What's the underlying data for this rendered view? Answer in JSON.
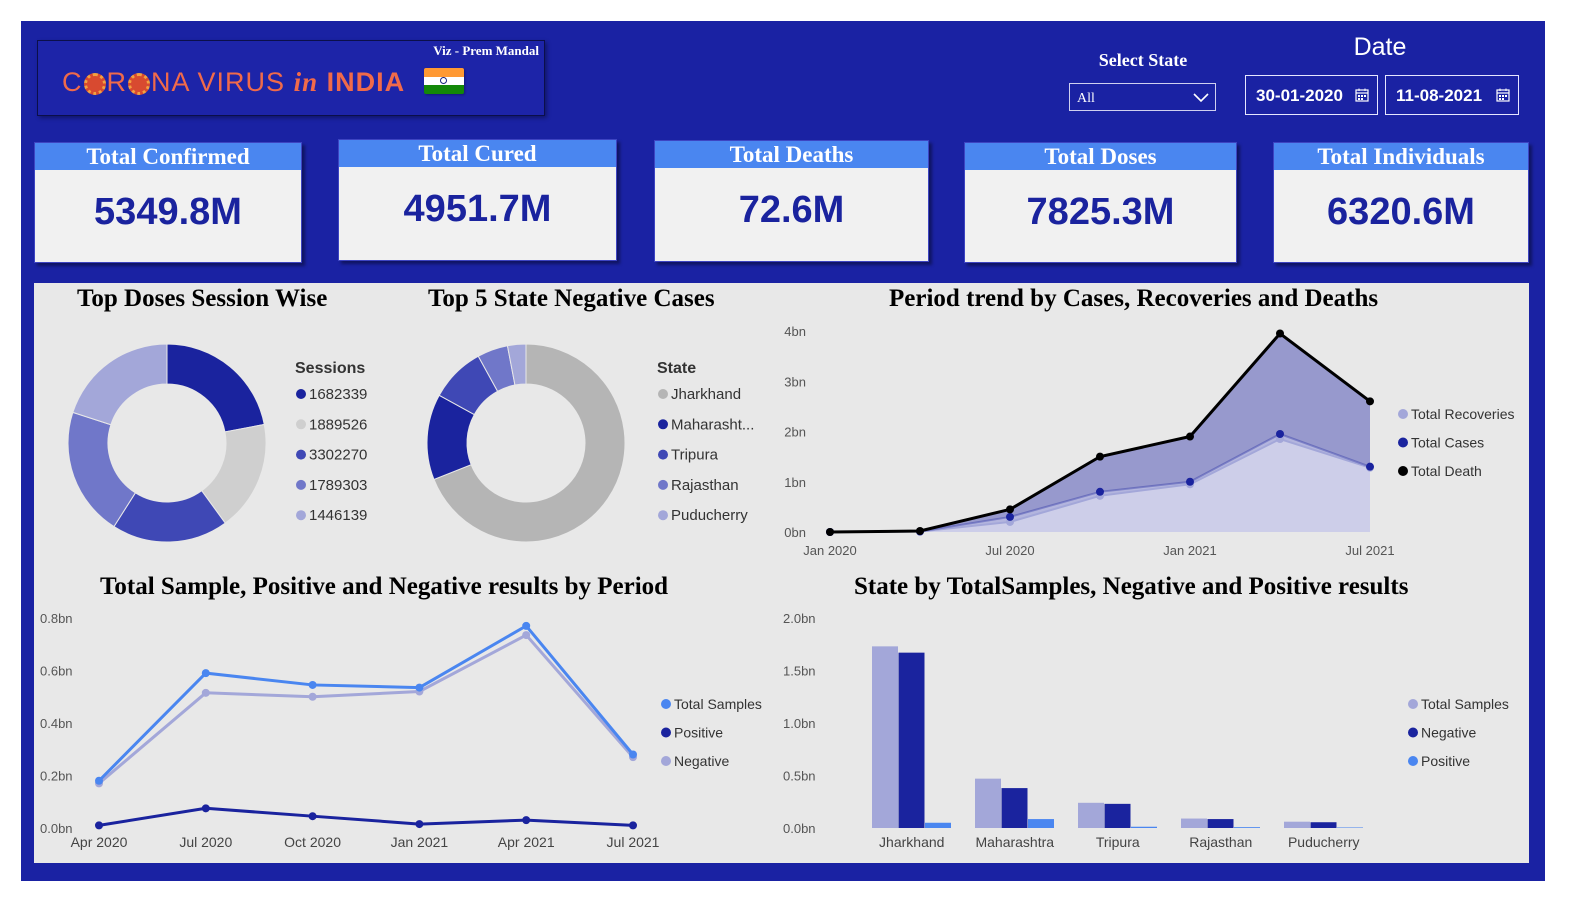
{
  "header": {
    "viz_credit": "Viz - Prem Mandal",
    "title_part1": "C",
    "title_part2": "R",
    "title_part3": "NA VIRUS",
    "title_in": "in",
    "title_india": "INDIA",
    "select_state_label": "Select State",
    "select_state_value": "All",
    "date_label": "Date",
    "date_from": "30-01-2020",
    "date_to": "11-08-2021"
  },
  "kpis": [
    {
      "label": "Total Confirmed",
      "value": "5349.8M"
    },
    {
      "label": "Total Cured",
      "value": "4951.7M"
    },
    {
      "label": "Total Deaths",
      "value": "72.6M"
    },
    {
      "label": "Total Doses",
      "value": "7825.3M"
    },
    {
      "label": "Total Individuals",
      "value": "6320.6M"
    }
  ],
  "colors": {
    "frame": "#1a22a3",
    "kpi_header": "#4a86f0",
    "kpi_value": "#1a239e",
    "panel": "#e8e8e8"
  },
  "charts": {
    "doses": {
      "title": "Top Doses Session Wise",
      "legend_title": "Sessions"
    },
    "negative": {
      "title": "Top 5 State Negative Cases",
      "legend_title": "State"
    },
    "trend": {
      "title": "Period trend by Cases, Recoveries and Deaths"
    },
    "samples": {
      "title": "Total Sample, Positive and Negative results by Period"
    },
    "state_bars": {
      "title": "State by TotalSamples, Negative and Positive results"
    }
  },
  "chart_data": [
    {
      "type": "pie",
      "title": "Top Doses Session Wise",
      "legend_title": "Sessions",
      "categories": [
        "1682339",
        "1889526",
        "3302270",
        "1789303",
        "1446139"
      ],
      "values": [
        0.22,
        0.18,
        0.19,
        0.21,
        0.2
      ],
      "colors": [
        "#1a239e",
        "#cfcfcf",
        "#3f48b5",
        "#7077c9",
        "#a3a7d9"
      ]
    },
    {
      "type": "pie",
      "title": "Top 5 State Negative Cases",
      "legend_title": "State",
      "categories": [
        "Jharkhand",
        "Maharasht...",
        "Tripura",
        "Rajasthan",
        "Puducherry"
      ],
      "values": [
        0.69,
        0.14,
        0.09,
        0.05,
        0.03
      ],
      "colors": [
        "#b5b5b5",
        "#1a239e",
        "#3f48b5",
        "#7077c9",
        "#a3a7d9"
      ]
    },
    {
      "type": "area",
      "title": "Period trend by Cases, Recoveries and Deaths",
      "x": [
        "2020-01",
        "2020-04",
        "2020-07",
        "2020-10",
        "2021-01",
        "2021-04",
        "2021-07"
      ],
      "x_ticks": [
        "Jan 2020",
        "Jul 2020",
        "Jan 2021",
        "Jul 2021"
      ],
      "y_ticks": [
        "0bn",
        "1bn",
        "2bn",
        "3bn",
        "4bn"
      ],
      "ylim": [
        0,
        4
      ],
      "series": [
        {
          "name": "Total Recoveries",
          "color": "#a3a7d9",
          "values": [
            0.0,
            0.01,
            0.2,
            0.72,
            0.95,
            1.85,
            1.28
          ]
        },
        {
          "name": "Total Cases",
          "color": "#1a239e",
          "values": [
            0.0,
            0.01,
            0.3,
            0.8,
            1.0,
            1.95,
            1.3
          ]
        },
        {
          "name": "Total Death",
          "color": "#000000",
          "values": [
            0.0,
            0.02,
            0.45,
            1.5,
            1.9,
            3.95,
            2.6
          ]
        }
      ]
    },
    {
      "type": "line",
      "title": "Total Sample, Positive and Negative results by Period",
      "x": [
        "Apr 2020",
        "Jul 2020",
        "Oct 2020",
        "Jan 2021",
        "Apr 2021",
        "Jul 2021"
      ],
      "y_ticks": [
        "0.0bn",
        "0.2bn",
        "0.4bn",
        "0.6bn",
        "0.8bn"
      ],
      "ylim": [
        0,
        0.8
      ],
      "series": [
        {
          "name": "Total Samples",
          "color": "#4a86f0",
          "values": [
            0.18,
            0.59,
            0.545,
            0.535,
            0.77,
            0.28
          ]
        },
        {
          "name": "Positive",
          "color": "#1a239e",
          "values": [
            0.01,
            0.075,
            0.045,
            0.015,
            0.03,
            0.01
          ]
        },
        {
          "name": "Negative",
          "color": "#a3a7d9",
          "values": [
            0.17,
            0.515,
            0.5,
            0.52,
            0.735,
            0.27
          ]
        }
      ]
    },
    {
      "type": "bar",
      "title": "State by TotalSamples, Negative and Positive results",
      "categories": [
        "Jharkhand",
        "Maharashtra",
        "Tripura",
        "Rajasthan",
        "Puducherry"
      ],
      "y_ticks": [
        "0.0bn",
        "0.5bn",
        "1.0bn",
        "1.5bn",
        "2.0bn"
      ],
      "ylim": [
        0,
        2.0
      ],
      "series": [
        {
          "name": "Total Samples",
          "color": "#a3a7d9",
          "values": [
            1.73,
            0.47,
            0.24,
            0.09,
            0.06
          ]
        },
        {
          "name": "Negative",
          "color": "#1a239e",
          "values": [
            1.67,
            0.38,
            0.23,
            0.085,
            0.055
          ]
        },
        {
          "name": "Positive",
          "color": "#4a86f0",
          "values": [
            0.05,
            0.085,
            0.012,
            0.008,
            0.005
          ]
        }
      ]
    }
  ]
}
